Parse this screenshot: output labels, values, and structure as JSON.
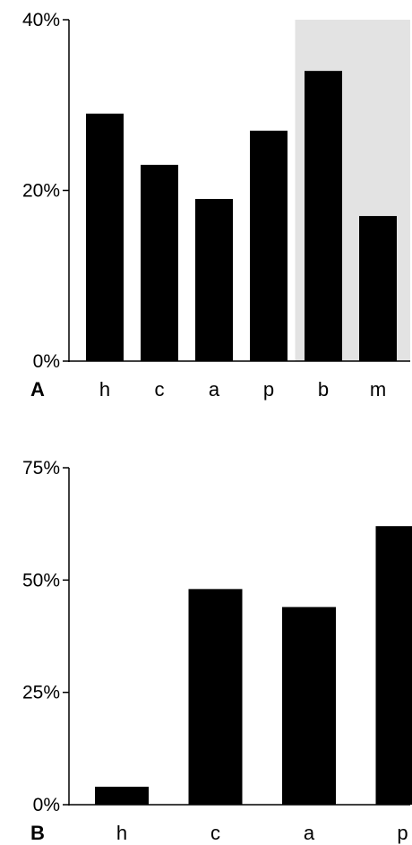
{
  "chart_data": [
    {
      "type": "bar",
      "panel_label": "A",
      "categories": [
        "h",
        "c",
        "a",
        "p",
        "b",
        "m"
      ],
      "values": [
        29,
        23,
        19,
        27,
        34,
        17
      ],
      "yticks": [
        "0%",
        "20%",
        "40%"
      ],
      "ylim": [
        0,
        40
      ],
      "highlighted_categories": [
        "b",
        "m"
      ],
      "highlight_color": "#e3e3e3",
      "bar_color": "#000000",
      "grid": false,
      "xlabel": "",
      "ylabel": ""
    },
    {
      "type": "bar",
      "panel_label": "B",
      "categories": [
        "h",
        "c",
        "a",
        "p"
      ],
      "values": [
        4,
        48,
        44,
        62
      ],
      "yticks": [
        "0%",
        "25%",
        "50%",
        "75%"
      ],
      "ylim": [
        0,
        75
      ],
      "bar_color": "#000000",
      "grid": false,
      "xlabel": "",
      "ylabel": ""
    }
  ]
}
